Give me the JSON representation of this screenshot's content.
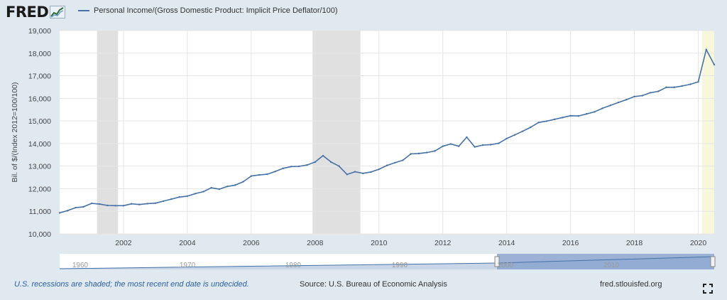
{
  "header": {
    "logo_text": "FRED",
    "legend_label": "Personal Income/(Gross Domestic Product: Implicit Price Deflator/100)"
  },
  "footer": {
    "recession_note": "U.S. recessions are shaded; the most recent end date is undecided.",
    "source": "Source: U.S. Bureau of Economic Analysis",
    "site": "fred.stlouisfed.org"
  },
  "colors": {
    "line": "#4572a7",
    "recession": "#e0e0e0",
    "undecided": "#f7f7dc",
    "navigator": "#8aa5cf"
  },
  "icons": {
    "fullscreen": "fullscreen-icon",
    "logo_graph": "trend-graph-icon"
  },
  "chart_data": {
    "type": "line",
    "title": "",
    "ylabel": "Bil. of $/(Index 2012=100/100)",
    "xlabel": "",
    "ylim": [
      10000,
      19000
    ],
    "xlim": [
      2000.0,
      2020.5
    ],
    "y_ticks": [
      "10,000",
      "11,000",
      "12,000",
      "13,000",
      "14,000",
      "15,000",
      "16,000",
      "17,000",
      "18,000",
      "19,000"
    ],
    "x_ticks": [
      "2002",
      "2004",
      "2006",
      "2008",
      "2010",
      "2012",
      "2014",
      "2016",
      "2018",
      "2020"
    ],
    "grid": true,
    "recessions": [
      [
        2001.17,
        2001.83
      ],
      [
        2007.92,
        2009.42
      ]
    ],
    "undecided_shade": [
      2020.12,
      2020.5
    ],
    "navigator_ticks": [
      "1960",
      "1970",
      "1980",
      "1990",
      "2000",
      "2010"
    ],
    "series": [
      {
        "name": "Personal Income/(Gross Domestic Product: Implicit Price Deflator/100)",
        "x": [
          2000.0,
          2000.25,
          2000.5,
          2000.75,
          2001.0,
          2001.25,
          2001.5,
          2001.75,
          2002.0,
          2002.25,
          2002.5,
          2002.75,
          2003.0,
          2003.25,
          2003.5,
          2003.75,
          2004.0,
          2004.25,
          2004.5,
          2004.75,
          2005.0,
          2005.25,
          2005.5,
          2005.75,
          2006.0,
          2006.25,
          2006.5,
          2006.75,
          2007.0,
          2007.25,
          2007.5,
          2007.75,
          2008.0,
          2008.25,
          2008.5,
          2008.75,
          2009.0,
          2009.25,
          2009.5,
          2009.75,
          2010.0,
          2010.25,
          2010.5,
          2010.75,
          2011.0,
          2011.25,
          2011.5,
          2011.75,
          2012.0,
          2012.25,
          2012.5,
          2012.75,
          2013.0,
          2013.25,
          2013.5,
          2013.75,
          2014.0,
          2014.25,
          2014.5,
          2014.75,
          2015.0,
          2015.25,
          2015.5,
          2015.75,
          2016.0,
          2016.25,
          2016.5,
          2016.75,
          2017.0,
          2017.25,
          2017.5,
          2017.75,
          2018.0,
          2018.25,
          2018.5,
          2018.75,
          2019.0,
          2019.25,
          2019.5,
          2019.75,
          2020.0,
          2020.25,
          2020.5
        ],
        "values": [
          10930,
          11030,
          11160,
          11200,
          11350,
          11320,
          11260,
          11250,
          11250,
          11330,
          11300,
          11340,
          11360,
          11450,
          11540,
          11630,
          11670,
          11780,
          11870,
          12040,
          11980,
          12100,
          12160,
          12310,
          12560,
          12610,
          12640,
          12760,
          12900,
          12980,
          12990,
          13050,
          13180,
          13460,
          13180,
          13000,
          12630,
          12750,
          12680,
          12740,
          12860,
          13030,
          13150,
          13260,
          13540,
          13560,
          13600,
          13670,
          13880,
          13980,
          13880,
          14280,
          13850,
          13930,
          13950,
          14010,
          14220,
          14380,
          14540,
          14720,
          14930,
          14990,
          15070,
          15150,
          15230,
          15220,
          15310,
          15400,
          15560,
          15690,
          15820,
          15940,
          16080,
          16120,
          16250,
          16310,
          16490,
          16490,
          16550,
          16620,
          16730,
          18160,
          17490
        ]
      }
    ]
  }
}
